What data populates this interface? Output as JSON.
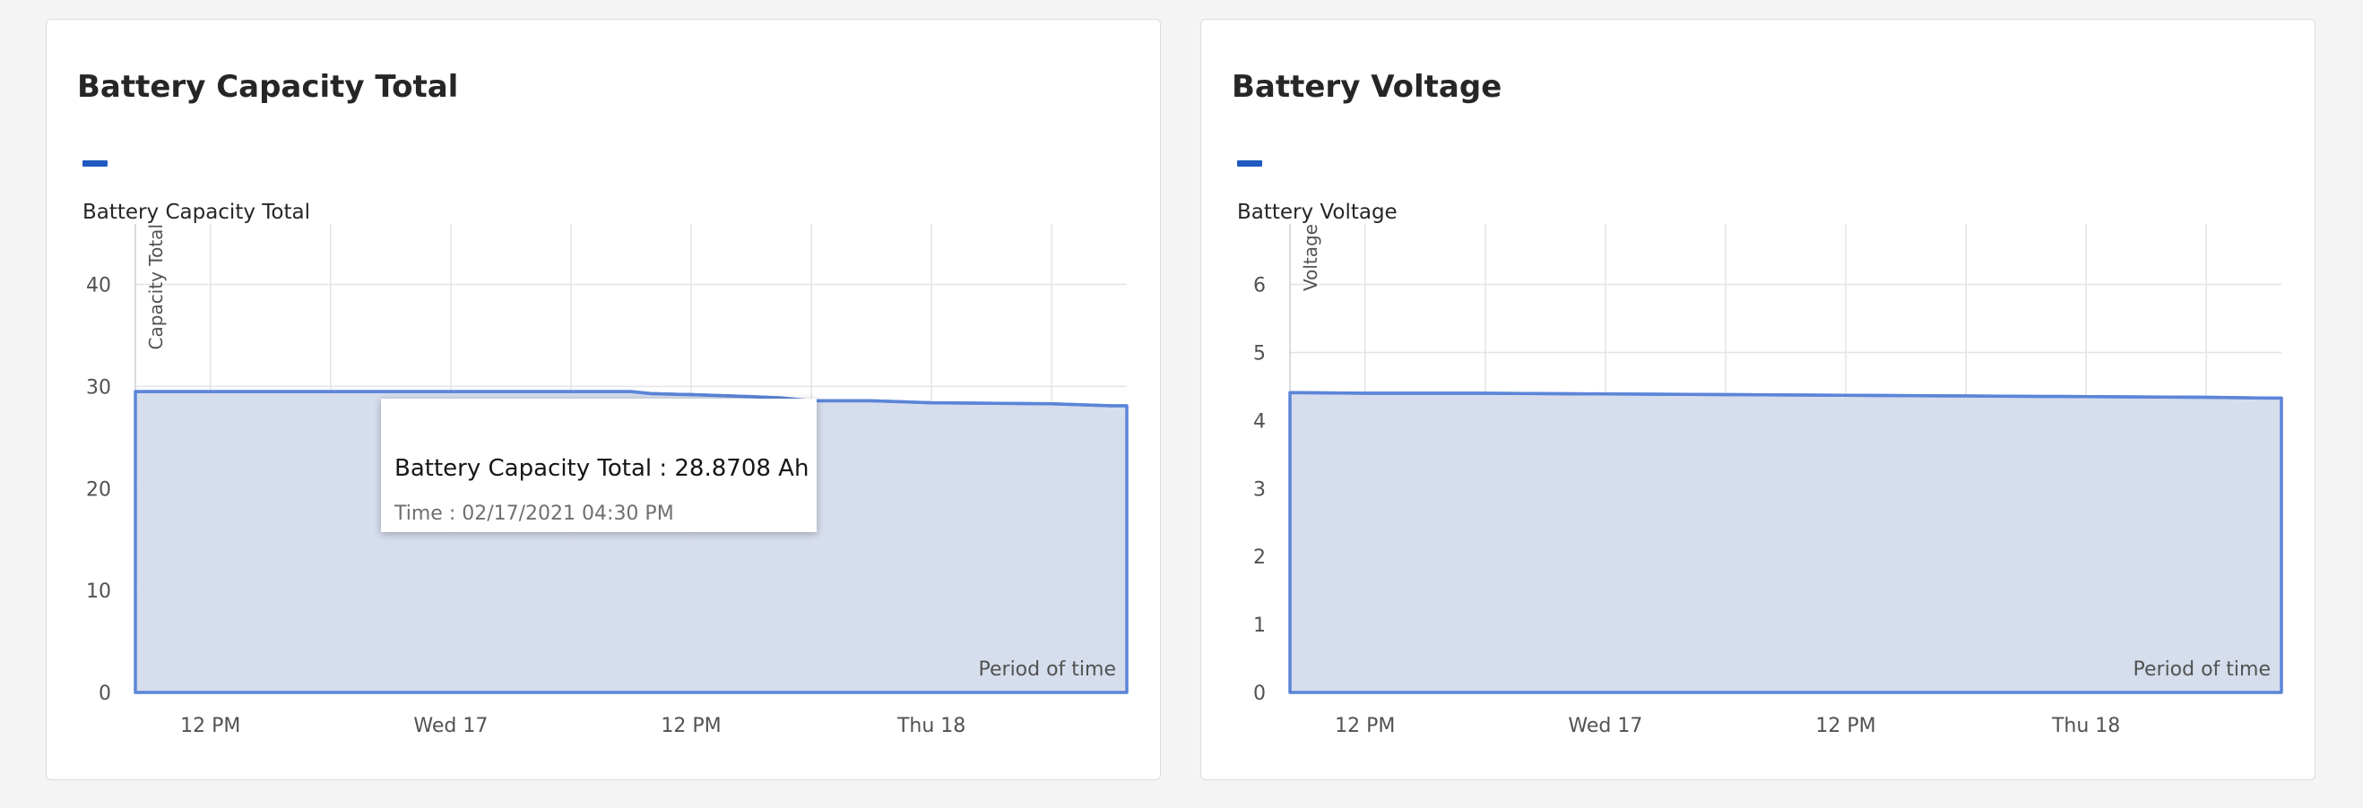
{
  "colors": {
    "series": "#0f62fe",
    "legend": "#1f5ac2",
    "line": "#5b85d8",
    "area": "#d4dbeb",
    "grid": "#e4e4e4",
    "axis_text": "#525252"
  },
  "charts": [
    {
      "title": "Battery Capacity Total",
      "legend": "Battery Capacity Total",
      "ylabel": "Capacity Total",
      "xlabel": "Period of time",
      "tooltip": {
        "value_text": "Battery Capacity Total : 28.8708 Ah",
        "time_text": "Time : 02/17/2021 04:30 PM"
      }
    },
    {
      "title": "Battery Voltage",
      "legend": "Battery Voltage",
      "ylabel": "Voltage",
      "xlabel": "Period of time"
    }
  ],
  "chart_data": [
    {
      "type": "area",
      "title": "Battery Capacity Total",
      "xlabel": "Period of time",
      "ylabel": "Capacity Total",
      "legend_position": "top-left",
      "grid": true,
      "x_ticks": [
        "12 PM",
        "Wed 17",
        "12 PM",
        "Thu 18"
      ],
      "ylim": [
        0,
        44
      ],
      "y_ticks": [
        0,
        10,
        20,
        30,
        40
      ],
      "series": [
        {
          "name": "Battery Capacity Total",
          "x": [
            "2021-02-16 08:15",
            "2021-02-16 12:00",
            "2021-02-16 18:00",
            "2021-02-17 00:00",
            "2021-02-17 06:00",
            "2021-02-17 09:00",
            "2021-02-17 10:00",
            "2021-02-17 12:00",
            "2021-02-17 15:00",
            "2021-02-17 16:30",
            "2021-02-17 18:00",
            "2021-02-17 21:00",
            "2021-02-18 00:00",
            "2021-02-18 06:00",
            "2021-02-18 09:00"
          ],
          "values": [
            29.5,
            29.5,
            29.5,
            29.5,
            29.5,
            29.5,
            29.3,
            29.2,
            29.0,
            28.87,
            28.6,
            28.6,
            28.4,
            28.3,
            28.1
          ]
        }
      ]
    },
    {
      "type": "area",
      "title": "Battery Voltage",
      "xlabel": "Period of time",
      "ylabel": "Voltage",
      "legend_position": "top-left",
      "grid": true,
      "x_ticks": [
        "12 PM",
        "Wed 17",
        "12 PM",
        "Thu 18"
      ],
      "ylim": [
        0,
        6.6
      ],
      "y_ticks": [
        0,
        1,
        2,
        3,
        4,
        5,
        6
      ],
      "series": [
        {
          "name": "Battery Voltage",
          "x": [
            "2021-02-16 08:15",
            "2021-02-16 12:00",
            "2021-02-16 18:00",
            "2021-02-17 00:00",
            "2021-02-17 06:00",
            "2021-02-17 12:00",
            "2021-02-17 18:00",
            "2021-02-18 00:00",
            "2021-02-18 06:00",
            "2021-02-18 09:00"
          ],
          "values": [
            4.41,
            4.4,
            4.4,
            4.39,
            4.38,
            4.37,
            4.36,
            4.35,
            4.34,
            4.33
          ]
        }
      ]
    }
  ]
}
